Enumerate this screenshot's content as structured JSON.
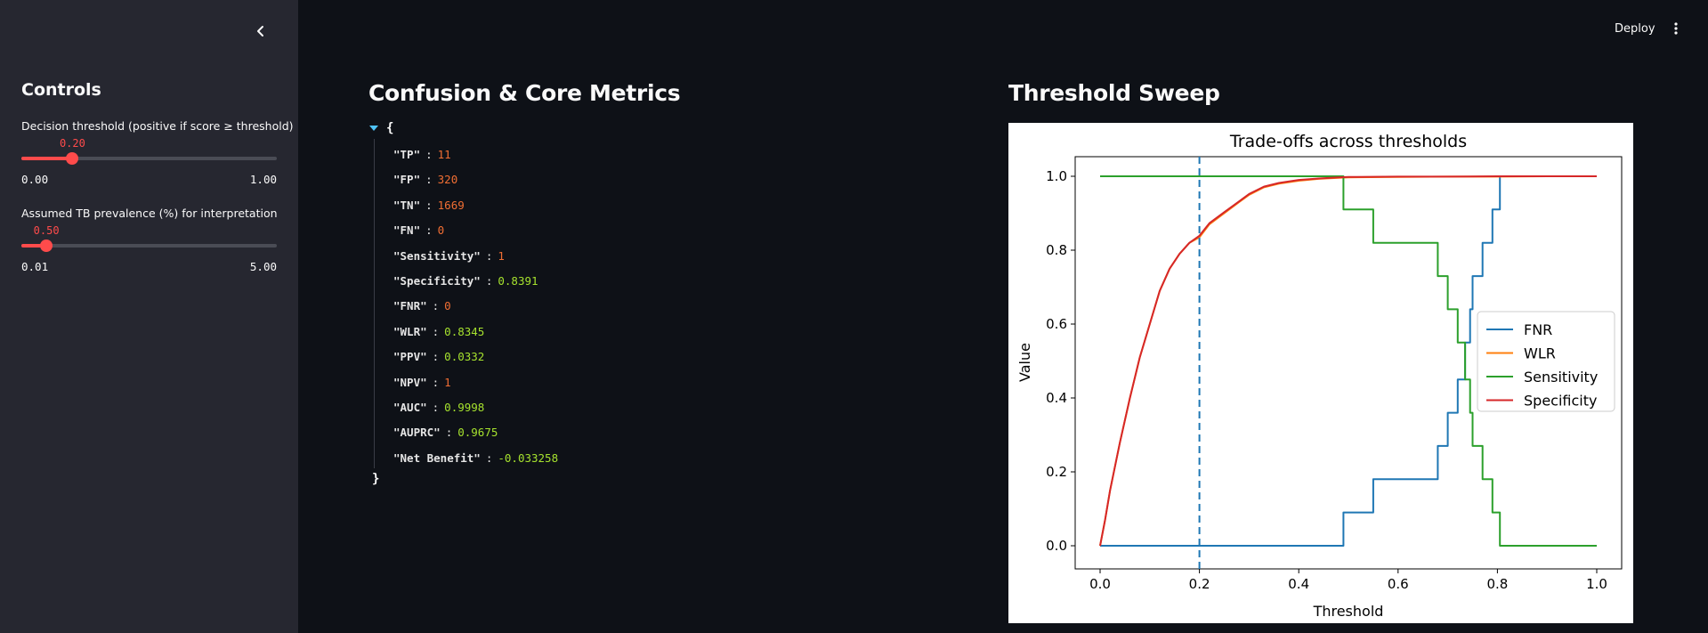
{
  "sidebar": {
    "title": "Controls",
    "collapse_icon": "chevron-left-icon",
    "threshold_slider": {
      "label": "Decision threshold (positive if score ≥ threshold)",
      "value": "0.20",
      "min": "0.00",
      "max": "1.00",
      "fraction": 0.2
    },
    "prevalence_slider": {
      "label": "Assumed TB prevalence (%) for interpretation",
      "value": "0.50",
      "min": "0.01",
      "max": "5.00",
      "fraction": 0.098
    }
  },
  "header": {
    "deploy_label": "Deploy",
    "menu_icon": "more-vertical-icon"
  },
  "metrics": {
    "title": "Confusion & Core Metrics",
    "open_brace": "{",
    "close_brace": "}",
    "rows": [
      {
        "key": "\"TP\"",
        "value": "11",
        "color": "red"
      },
      {
        "key": "\"FP\"",
        "value": "320",
        "color": "red"
      },
      {
        "key": "\"TN\"",
        "value": "1669",
        "color": "red"
      },
      {
        "key": "\"FN\"",
        "value": "0",
        "color": "red"
      },
      {
        "key": "\"Sensitivity\"",
        "value": "1",
        "color": "red"
      },
      {
        "key": "\"Specificity\"",
        "value": "0.8391",
        "color": "green"
      },
      {
        "key": "\"FNR\"",
        "value": "0",
        "color": "red"
      },
      {
        "key": "\"WLR\"",
        "value": "0.8345",
        "color": "green"
      },
      {
        "key": "\"PPV\"",
        "value": "0.0332",
        "color": "green"
      },
      {
        "key": "\"NPV\"",
        "value": "1",
        "color": "red"
      },
      {
        "key": "\"AUC\"",
        "value": "0.9998",
        "color": "green"
      },
      {
        "key": "\"AUPRC\"",
        "value": "0.9675",
        "color": "green"
      },
      {
        "key": "\"Net Benefit\"",
        "value": "-0.033258",
        "color": "green"
      }
    ]
  },
  "sweep": {
    "title": "Threshold Sweep"
  },
  "colors": {
    "accent": "#ff4b4b",
    "fnr": "#1f77b4",
    "wlr": "#ff7f0e",
    "sensitivity": "#2ca02c",
    "specificity": "#d62728"
  },
  "chart_data": {
    "type": "line",
    "title": "Trade-offs across thresholds",
    "xlabel": "Threshold",
    "ylabel": "Value",
    "xlim": [
      0.0,
      1.0
    ],
    "ylim": [
      0.0,
      1.0
    ],
    "xticks": [
      "0.0",
      "0.2",
      "0.4",
      "0.6",
      "0.8",
      "1.0"
    ],
    "yticks": [
      "0.0",
      "0.2",
      "0.4",
      "0.6",
      "0.8",
      "1.0"
    ],
    "legend_position": "center-right",
    "vline": {
      "x": 0.2,
      "style": "dashed",
      "color": "#1f77b4"
    },
    "series": [
      {
        "name": "FNR",
        "color": "#1f77b4",
        "x": [
          0.0,
          0.49,
          0.49,
          0.55,
          0.55,
          0.68,
          0.68,
          0.7,
          0.7,
          0.72,
          0.72,
          0.735,
          0.735,
          0.745,
          0.745,
          0.75,
          0.75,
          0.77,
          0.77,
          0.79,
          0.79,
          0.805,
          0.805,
          1.0
        ],
        "y": [
          0.0,
          0.0,
          0.09,
          0.09,
          0.18,
          0.18,
          0.27,
          0.27,
          0.36,
          0.36,
          0.45,
          0.45,
          0.55,
          0.55,
          0.64,
          0.64,
          0.73,
          0.73,
          0.82,
          0.82,
          0.91,
          0.91,
          1.0,
          1.0
        ]
      },
      {
        "name": "WLR",
        "color": "#ff7f0e",
        "x": [
          0.0,
          0.01,
          0.02,
          0.04,
          0.06,
          0.08,
          0.1,
          0.12,
          0.14,
          0.16,
          0.18,
          0.2,
          0.22,
          0.25,
          0.28,
          0.3,
          0.33,
          0.36,
          0.4,
          0.44,
          0.48,
          0.5,
          0.6,
          0.7,
          0.8,
          0.9,
          1.0
        ],
        "y": [
          0.0,
          0.07,
          0.15,
          0.28,
          0.4,
          0.51,
          0.6,
          0.69,
          0.75,
          0.79,
          0.82,
          0.835,
          0.87,
          0.9,
          0.93,
          0.95,
          0.97,
          0.98,
          0.988,
          0.993,
          0.996,
          0.997,
          0.998,
          0.999,
          0.999,
          1.0,
          1.0
        ]
      },
      {
        "name": "Sensitivity",
        "color": "#2ca02c",
        "x": [
          0.0,
          0.49,
          0.49,
          0.55,
          0.55,
          0.68,
          0.68,
          0.7,
          0.7,
          0.72,
          0.72,
          0.735,
          0.735,
          0.745,
          0.745,
          0.75,
          0.75,
          0.77,
          0.77,
          0.79,
          0.79,
          0.805,
          0.805,
          1.0
        ],
        "y": [
          1.0,
          1.0,
          0.91,
          0.91,
          0.82,
          0.82,
          0.73,
          0.73,
          0.64,
          0.64,
          0.55,
          0.55,
          0.45,
          0.45,
          0.36,
          0.36,
          0.27,
          0.27,
          0.18,
          0.18,
          0.09,
          0.09,
          0.0,
          0.0
        ]
      },
      {
        "name": "Specificity",
        "color": "#d62728",
        "x": [
          0.0,
          0.01,
          0.02,
          0.04,
          0.06,
          0.08,
          0.1,
          0.12,
          0.14,
          0.16,
          0.18,
          0.2,
          0.22,
          0.25,
          0.28,
          0.3,
          0.33,
          0.36,
          0.4,
          0.44,
          0.48,
          0.5,
          0.6,
          0.7,
          0.8,
          0.9,
          1.0
        ],
        "y": [
          0.0,
          0.07,
          0.15,
          0.28,
          0.4,
          0.51,
          0.6,
          0.69,
          0.75,
          0.79,
          0.82,
          0.839,
          0.873,
          0.903,
          0.932,
          0.952,
          0.972,
          0.982,
          0.99,
          0.994,
          0.997,
          0.998,
          0.999,
          0.999,
          1.0,
          1.0,
          1.0
        ]
      }
    ]
  }
}
